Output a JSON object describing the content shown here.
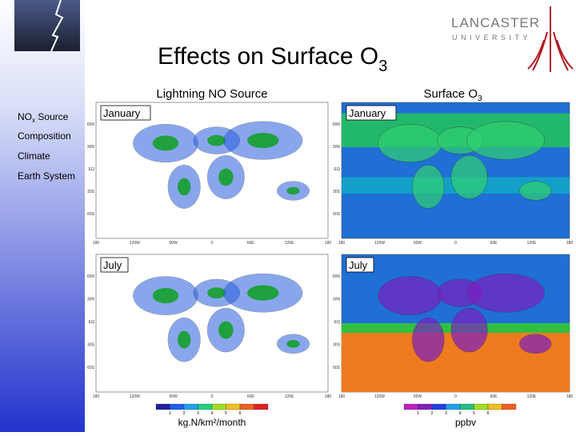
{
  "header": {
    "title": "Effects on Surface O",
    "title_sub": "3",
    "logo": {
      "name": "LANCASTER",
      "sub": "UNIVERSITY"
    }
  },
  "sidebar": {
    "nox": {
      "text": "NO",
      "sub": "x",
      "rest": " Source"
    },
    "items": [
      "Composition",
      "Climate",
      "Earth System"
    ]
  },
  "columns": [
    {
      "title": "Lightning NO Source",
      "unit": "kg.N/km²/month",
      "colorbar_ticks": [
        "1",
        "2",
        "3",
        "4",
        "5",
        "6"
      ]
    },
    {
      "title": "Surface O",
      "title_sub": "3",
      "unit": "ppbv",
      "colorbar_ticks": [
        "1",
        "2",
        "3",
        "4",
        "5",
        "6"
      ]
    }
  ],
  "months": [
    "January",
    "July"
  ],
  "map_axes": {
    "lon": [
      "180",
      "120W",
      "60W",
      "0",
      "60E",
      "120E",
      "180"
    ],
    "lat": [
      "60N",
      "30N",
      "EQ",
      "30S",
      "60S"
    ]
  }
}
